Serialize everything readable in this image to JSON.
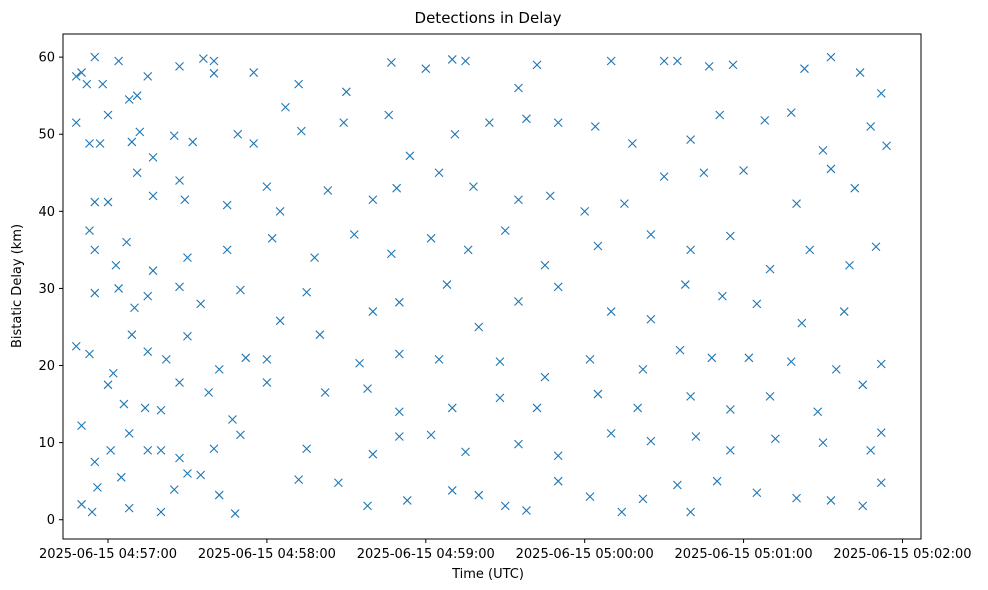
{
  "chart_data": {
    "type": "scatter",
    "title": "Detections in Delay",
    "xlabel": "Time (UTC)",
    "ylabel": "Bistatic Delay (km)",
    "x_axis_type": "time",
    "x_range": [
      "2025-06-15 04:56:43",
      "2025-06-15 05:02:07"
    ],
    "y_range": [
      -2.5,
      63
    ],
    "x_ticks": [
      "2025-06-15 04:57:00",
      "2025-06-15 04:58:00",
      "2025-06-15 04:59:00",
      "2025-06-15 05:00:00",
      "2025-06-15 05:01:00",
      "2025-06-15 05:02:00"
    ],
    "y_ticks": [
      "0",
      "10",
      "20",
      "30",
      "40",
      "50",
      "60"
    ],
    "grid": false,
    "marker": "x",
    "color": "#1f77b4",
    "series": [
      {
        "points": [
          [
            "2025-06-15 04:56:48",
            57.5
          ],
          [
            "2025-06-15 04:56:50",
            58.0
          ],
          [
            "2025-06-15 04:56:52",
            56.5
          ],
          [
            "2025-06-15 04:56:55",
            60.0
          ],
          [
            "2025-06-15 04:56:58",
            56.5
          ],
          [
            "2025-06-15 04:57:04",
            59.5
          ],
          [
            "2025-06-15 04:57:08",
            54.5
          ],
          [
            "2025-06-15 04:57:11",
            55.0
          ],
          [
            "2025-06-15 04:57:15",
            57.5
          ],
          [
            "2025-06-15 04:57:27",
            58.8
          ],
          [
            "2025-06-15 04:57:36",
            59.8
          ],
          [
            "2025-06-15 04:57:40",
            59.5
          ],
          [
            "2025-06-15 04:57:40",
            57.9
          ],
          [
            "2025-06-15 04:57:55",
            58.0
          ],
          [
            "2025-06-15 04:58:07",
            53.5
          ],
          [
            "2025-06-15 04:58:12",
            56.5
          ],
          [
            "2025-06-15 04:58:30",
            55.5
          ],
          [
            "2025-06-15 04:58:47",
            59.3
          ],
          [
            "2025-06-15 04:59:00",
            58.5
          ],
          [
            "2025-06-15 04:59:10",
            59.7
          ],
          [
            "2025-06-15 04:59:15",
            59.5
          ],
          [
            "2025-06-15 04:59:35",
            56.0
          ],
          [
            "2025-06-15 04:59:42",
            59.0
          ],
          [
            "2025-06-15 05:00:10",
            59.5
          ],
          [
            "2025-06-15 05:00:30",
            59.5
          ],
          [
            "2025-06-15 05:00:35",
            59.5
          ],
          [
            "2025-06-15 05:00:47",
            58.8
          ],
          [
            "2025-06-15 05:00:56",
            59.0
          ],
          [
            "2025-06-15 05:01:23",
            58.5
          ],
          [
            "2025-06-15 05:01:33",
            60.0
          ],
          [
            "2025-06-15 05:01:44",
            58.0
          ],
          [
            "2025-06-15 05:01:52",
            55.3
          ],
          [
            "2025-06-15 04:56:48",
            51.5
          ],
          [
            "2025-06-15 04:56:53",
            48.8
          ],
          [
            "2025-06-15 04:56:57",
            48.8
          ],
          [
            "2025-06-15 04:57:00",
            52.5
          ],
          [
            "2025-06-15 04:57:09",
            49.0
          ],
          [
            "2025-06-15 04:57:12",
            50.3
          ],
          [
            "2025-06-15 04:57:17",
            47.0
          ],
          [
            "2025-06-15 04:57:25",
            49.8
          ],
          [
            "2025-06-15 04:57:32",
            49.0
          ],
          [
            "2025-06-15 04:57:49",
            50.0
          ],
          [
            "2025-06-15 04:57:55",
            48.8
          ],
          [
            "2025-06-15 04:58:13",
            50.4
          ],
          [
            "2025-06-15 04:58:29",
            51.5
          ],
          [
            "2025-06-15 04:58:46",
            52.5
          ],
          [
            "2025-06-15 04:58:54",
            47.2
          ],
          [
            "2025-06-15 04:59:11",
            50.0
          ],
          [
            "2025-06-15 04:59:24",
            51.5
          ],
          [
            "2025-06-15 04:59:38",
            52.0
          ],
          [
            "2025-06-15 04:59:50",
            51.5
          ],
          [
            "2025-06-15 05:00:04",
            51.0
          ],
          [
            "2025-06-15 05:00:18",
            48.8
          ],
          [
            "2025-06-15 05:00:40",
            49.3
          ],
          [
            "2025-06-15 05:00:51",
            52.5
          ],
          [
            "2025-06-15 05:01:08",
            51.8
          ],
          [
            "2025-06-15 05:01:18",
            52.8
          ],
          [
            "2025-06-15 05:01:30",
            47.9
          ],
          [
            "2025-06-15 05:01:48",
            51.0
          ],
          [
            "2025-06-15 05:01:54",
            48.5
          ],
          [
            "2025-06-15 04:56:55",
            41.2
          ],
          [
            "2025-06-15 04:57:00",
            41.2
          ],
          [
            "2025-06-15 04:57:11",
            45.0
          ],
          [
            "2025-06-15 04:57:17",
            42.0
          ],
          [
            "2025-06-15 04:57:27",
            44.0
          ],
          [
            "2025-06-15 04:57:29",
            41.5
          ],
          [
            "2025-06-15 04:57:45",
            40.8
          ],
          [
            "2025-06-15 04:58:00",
            43.2
          ],
          [
            "2025-06-15 04:58:05",
            40.0
          ],
          [
            "2025-06-15 04:58:23",
            42.7
          ],
          [
            "2025-06-15 04:58:40",
            41.5
          ],
          [
            "2025-06-15 04:58:49",
            43.0
          ],
          [
            "2025-06-15 04:59:05",
            45.0
          ],
          [
            "2025-06-15 04:59:18",
            43.2
          ],
          [
            "2025-06-15 04:59:35",
            41.5
          ],
          [
            "2025-06-15 04:59:47",
            42.0
          ],
          [
            "2025-06-15 05:00:00",
            40.0
          ],
          [
            "2025-06-15 05:00:15",
            41.0
          ],
          [
            "2025-06-15 05:00:30",
            44.5
          ],
          [
            "2025-06-15 05:00:45",
            45.0
          ],
          [
            "2025-06-15 05:01:00",
            45.3
          ],
          [
            "2025-06-15 05:01:20",
            41.0
          ],
          [
            "2025-06-15 05:01:33",
            45.5
          ],
          [
            "2025-06-15 05:01:42",
            43.0
          ],
          [
            "2025-06-15 04:56:53",
            37.5
          ],
          [
            "2025-06-15 04:56:55",
            35.0
          ],
          [
            "2025-06-15 04:57:03",
            33.0
          ],
          [
            "2025-06-15 04:57:07",
            36.0
          ],
          [
            "2025-06-15 04:57:17",
            32.3
          ],
          [
            "2025-06-15 04:57:30",
            34.0
          ],
          [
            "2025-06-15 04:57:45",
            35.0
          ],
          [
            "2025-06-15 04:58:02",
            36.5
          ],
          [
            "2025-06-15 04:58:18",
            34.0
          ],
          [
            "2025-06-15 04:58:33",
            37.0
          ],
          [
            "2025-06-15 04:58:47",
            34.5
          ],
          [
            "2025-06-15 04:59:02",
            36.5
          ],
          [
            "2025-06-15 04:59:16",
            35.0
          ],
          [
            "2025-06-15 04:59:30",
            37.5
          ],
          [
            "2025-06-15 04:59:45",
            33.0
          ],
          [
            "2025-06-15 05:00:05",
            35.5
          ],
          [
            "2025-06-15 05:00:25",
            37.0
          ],
          [
            "2025-06-15 05:00:40",
            35.0
          ],
          [
            "2025-06-15 05:00:55",
            36.8
          ],
          [
            "2025-06-15 05:01:10",
            32.5
          ],
          [
            "2025-06-15 05:01:25",
            35.0
          ],
          [
            "2025-06-15 05:01:40",
            33.0
          ],
          [
            "2025-06-15 05:01:50",
            35.4
          ],
          [
            "2025-06-15 04:56:55",
            29.4
          ],
          [
            "2025-06-15 04:57:04",
            30.0
          ],
          [
            "2025-06-15 04:57:10",
            27.5
          ],
          [
            "2025-06-15 04:57:15",
            29.0
          ],
          [
            "2025-06-15 04:57:27",
            30.2
          ],
          [
            "2025-06-15 04:57:35",
            28.0
          ],
          [
            "2025-06-15 04:57:50",
            29.8
          ],
          [
            "2025-06-15 04:58:05",
            25.8
          ],
          [
            "2025-06-15 04:58:15",
            29.5
          ],
          [
            "2025-06-15 04:58:40",
            27.0
          ],
          [
            "2025-06-15 04:58:50",
            28.2
          ],
          [
            "2025-06-15 04:59:08",
            30.5
          ],
          [
            "2025-06-15 04:59:20",
            25.0
          ],
          [
            "2025-06-15 04:59:35",
            28.3
          ],
          [
            "2025-06-15 04:59:50",
            30.2
          ],
          [
            "2025-06-15 05:00:10",
            27.0
          ],
          [
            "2025-06-15 05:00:25",
            26.0
          ],
          [
            "2025-06-15 05:00:38",
            30.5
          ],
          [
            "2025-06-15 05:00:52",
            29.0
          ],
          [
            "2025-06-15 05:01:05",
            28.0
          ],
          [
            "2025-06-15 05:01:22",
            25.5
          ],
          [
            "2025-06-15 05:01:38",
            27.0
          ],
          [
            "2025-06-15 04:56:48",
            22.5
          ],
          [
            "2025-06-15 04:56:53",
            21.5
          ],
          [
            "2025-06-15 04:57:02",
            19.0
          ],
          [
            "2025-06-15 04:57:09",
            24.0
          ],
          [
            "2025-06-15 04:57:15",
            21.8
          ],
          [
            "2025-06-15 04:57:22",
            20.8
          ],
          [
            "2025-06-15 04:57:30",
            23.8
          ],
          [
            "2025-06-15 04:57:42",
            19.5
          ],
          [
            "2025-06-15 04:57:52",
            21.0
          ],
          [
            "2025-06-15 04:58:00",
            20.8
          ],
          [
            "2025-06-15 04:58:20",
            24.0
          ],
          [
            "2025-06-15 04:58:35",
            20.3
          ],
          [
            "2025-06-15 04:58:50",
            21.5
          ],
          [
            "2025-06-15 04:59:05",
            20.8
          ],
          [
            "2025-06-15 04:59:28",
            20.5
          ],
          [
            "2025-06-15 04:59:45",
            18.5
          ],
          [
            "2025-06-15 05:00:02",
            20.8
          ],
          [
            "2025-06-15 05:00:22",
            19.5
          ],
          [
            "2025-06-15 05:00:36",
            22.0
          ],
          [
            "2025-06-15 05:00:48",
            21.0
          ],
          [
            "2025-06-15 05:01:02",
            21.0
          ],
          [
            "2025-06-15 05:01:18",
            20.5
          ],
          [
            "2025-06-15 05:01:35",
            19.5
          ],
          [
            "2025-06-15 05:01:52",
            20.2
          ],
          [
            "2025-06-15 04:57:00",
            17.5
          ],
          [
            "2025-06-15 04:57:06",
            15.0
          ],
          [
            "2025-06-15 04:57:14",
            14.5
          ],
          [
            "2025-06-15 04:57:20",
            14.2
          ],
          [
            "2025-06-15 04:57:27",
            17.8
          ],
          [
            "2025-06-15 04:57:38",
            16.5
          ],
          [
            "2025-06-15 04:57:47",
            13.0
          ],
          [
            "2025-06-15 04:58:00",
            17.8
          ],
          [
            "2025-06-15 04:58:22",
            16.5
          ],
          [
            "2025-06-15 04:58:38",
            17.0
          ],
          [
            "2025-06-15 04:58:50",
            14.0
          ],
          [
            "2025-06-15 04:59:10",
            14.5
          ],
          [
            "2025-06-15 04:59:28",
            15.8
          ],
          [
            "2025-06-15 04:59:42",
            14.5
          ],
          [
            "2025-06-15 05:00:05",
            16.3
          ],
          [
            "2025-06-15 05:00:20",
            14.5
          ],
          [
            "2025-06-15 05:00:40",
            16.0
          ],
          [
            "2025-06-15 05:00:55",
            14.3
          ],
          [
            "2025-06-15 05:01:10",
            16.0
          ],
          [
            "2025-06-15 05:01:28",
            14.0
          ],
          [
            "2025-06-15 05:01:45",
            17.5
          ],
          [
            "2025-06-15 04:56:50",
            12.2
          ],
          [
            "2025-06-15 04:56:55",
            7.5
          ],
          [
            "2025-06-15 04:57:01",
            9.0
          ],
          [
            "2025-06-15 04:57:08",
            11.2
          ],
          [
            "2025-06-15 04:57:15",
            9.0
          ],
          [
            "2025-06-15 04:57:20",
            9.0
          ],
          [
            "2025-06-15 04:57:27",
            8.0
          ],
          [
            "2025-06-15 04:57:30",
            6.0
          ],
          [
            "2025-06-15 04:57:40",
            9.2
          ],
          [
            "2025-06-15 04:57:50",
            11.0
          ],
          [
            "2025-06-15 04:58:15",
            9.2
          ],
          [
            "2025-06-15 04:58:40",
            8.5
          ],
          [
            "2025-06-15 04:58:50",
            10.8
          ],
          [
            "2025-06-15 04:59:02",
            11.0
          ],
          [
            "2025-06-15 04:59:15",
            8.8
          ],
          [
            "2025-06-15 04:59:35",
            9.8
          ],
          [
            "2025-06-15 04:59:50",
            8.3
          ],
          [
            "2025-06-15 05:00:10",
            11.2
          ],
          [
            "2025-06-15 05:00:25",
            10.2
          ],
          [
            "2025-06-15 05:00:42",
            10.8
          ],
          [
            "2025-06-15 05:00:55",
            9.0
          ],
          [
            "2025-06-15 05:01:12",
            10.5
          ],
          [
            "2025-06-15 05:01:30",
            10.0
          ],
          [
            "2025-06-15 05:01:48",
            9.0
          ],
          [
            "2025-06-15 05:01:52",
            11.3
          ],
          [
            "2025-06-15 04:56:50",
            2.0
          ],
          [
            "2025-06-15 04:56:54",
            1.0
          ],
          [
            "2025-06-15 04:56:56",
            4.2
          ],
          [
            "2025-06-15 04:57:05",
            5.5
          ],
          [
            "2025-06-15 04:57:08",
            1.5
          ],
          [
            "2025-06-15 04:57:20",
            1.0
          ],
          [
            "2025-06-15 04:57:25",
            3.9
          ],
          [
            "2025-06-15 04:57:35",
            5.8
          ],
          [
            "2025-06-15 04:57:42",
            3.2
          ],
          [
            "2025-06-15 04:57:48",
            0.8
          ],
          [
            "2025-06-15 04:58:12",
            5.2
          ],
          [
            "2025-06-15 04:58:27",
            4.8
          ],
          [
            "2025-06-15 04:58:38",
            1.8
          ],
          [
            "2025-06-15 04:58:53",
            2.5
          ],
          [
            "2025-06-15 04:59:10",
            3.8
          ],
          [
            "2025-06-15 04:59:20",
            3.2
          ],
          [
            "2025-06-15 04:59:30",
            1.8
          ],
          [
            "2025-06-15 04:59:38",
            1.2
          ],
          [
            "2025-06-15 04:59:50",
            5.0
          ],
          [
            "2025-06-15 05:00:02",
            3.0
          ],
          [
            "2025-06-15 05:00:14",
            1.0
          ],
          [
            "2025-06-15 05:00:22",
            2.7
          ],
          [
            "2025-06-15 05:00:35",
            4.5
          ],
          [
            "2025-06-15 05:00:40",
            1.0
          ],
          [
            "2025-06-15 05:00:50",
            5.0
          ],
          [
            "2025-06-15 05:01:05",
            3.5
          ],
          [
            "2025-06-15 05:01:20",
            2.8
          ],
          [
            "2025-06-15 05:01:33",
            2.5
          ],
          [
            "2025-06-15 05:01:45",
            1.8
          ],
          [
            "2025-06-15 05:01:52",
            4.8
          ]
        ]
      }
    ]
  }
}
